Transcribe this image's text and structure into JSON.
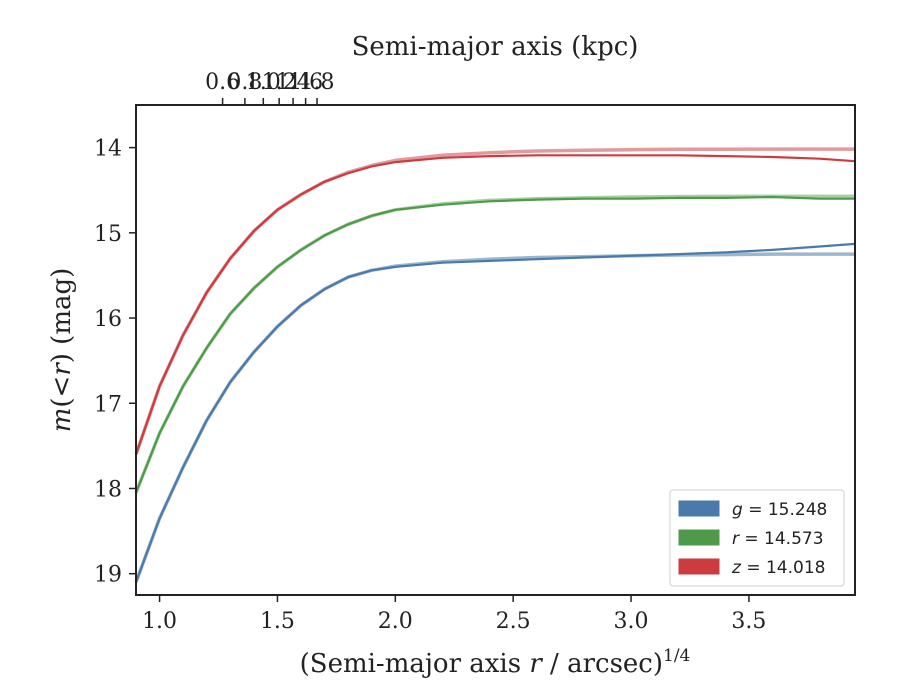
{
  "chart_data": {
    "type": "line",
    "x_label_main": "(Semi-major axis ",
    "x_label_var": "r",
    "x_label_rest": " / arcsec)",
    "x_label_sup": "1/4",
    "x2_label": "Semi-major axis (kpc)",
    "y_label_var": "m",
    "y_label_mid": "(<",
    "y_label_var2": "r",
    "y_label_rest": ") (mag)",
    "xlim": [
      0.9,
      3.95
    ],
    "ylim": [
      19.25,
      13.5
    ],
    "x_ticks": [
      "1.0",
      "1.5",
      "2.0",
      "2.5",
      "3.0",
      "3.5"
    ],
    "x_tick_values": [
      1.0,
      1.5,
      2.0,
      2.5,
      3.0,
      3.5
    ],
    "y_ticks": [
      "14",
      "15",
      "16",
      "17",
      "18",
      "19"
    ],
    "y_tick_values": [
      14,
      15,
      16,
      17,
      18,
      19
    ],
    "x2_ticks": [
      "0.6",
      "0.8",
      "1.0",
      "1.2",
      "1.4",
      "1.6",
      "1.8"
    ],
    "x2_tick_values": [
      0.6,
      0.8,
      1.0,
      1.2,
      1.4,
      1.6,
      1.8
    ],
    "x2_scale": "r^(1/4) = 1.44 * kpc^(1/4)",
    "grid": false,
    "legend_position": "lower-right",
    "series": [
      {
        "name": "g",
        "legend_value": "= 15.248",
        "color": "#4a7aaa",
        "model_color": "#9db6cf",
        "x": [
          0.9,
          1.0,
          1.1,
          1.2,
          1.3,
          1.4,
          1.5,
          1.6,
          1.7,
          1.8,
          1.9,
          2.0,
          2.2,
          2.4,
          2.6,
          2.8,
          3.0,
          3.2,
          3.4,
          3.6,
          3.8,
          3.95
        ],
        "y": [
          19.1,
          18.35,
          17.75,
          17.2,
          16.75,
          16.4,
          16.1,
          15.85,
          15.66,
          15.52,
          15.44,
          15.4,
          15.35,
          15.33,
          15.31,
          15.29,
          15.27,
          15.25,
          15.23,
          15.2,
          15.16,
          15.13
        ],
        "model_y": [
          19.1,
          18.35,
          17.75,
          17.2,
          16.75,
          16.4,
          16.1,
          15.85,
          15.66,
          15.52,
          15.44,
          15.39,
          15.34,
          15.31,
          15.29,
          15.28,
          15.27,
          15.26,
          15.255,
          15.25,
          15.25,
          15.25
        ]
      },
      {
        "name": "r",
        "legend_value": "= 14.573",
        "color": "#4f9a4a",
        "model_color": "#a6d0a0",
        "x": [
          0.9,
          1.0,
          1.1,
          1.2,
          1.3,
          1.4,
          1.5,
          1.6,
          1.7,
          1.8,
          1.9,
          2.0,
          2.2,
          2.4,
          2.6,
          2.8,
          3.0,
          3.2,
          3.4,
          3.6,
          3.8,
          3.95
        ],
        "y": [
          18.05,
          17.35,
          16.8,
          16.35,
          15.95,
          15.65,
          15.4,
          15.2,
          15.03,
          14.9,
          14.8,
          14.73,
          14.67,
          14.63,
          14.61,
          14.6,
          14.6,
          14.59,
          14.59,
          14.58,
          14.6,
          14.6
        ],
        "model_y": [
          18.05,
          17.35,
          16.8,
          16.35,
          15.95,
          15.65,
          15.4,
          15.2,
          15.03,
          14.9,
          14.8,
          14.73,
          14.66,
          14.62,
          14.6,
          14.59,
          14.58,
          14.575,
          14.573,
          14.573,
          14.573,
          14.573
        ]
      },
      {
        "name": "z",
        "legend_value": "= 14.018",
        "color": "#cc3b3f",
        "model_color": "#e39a9c",
        "x": [
          0.9,
          1.0,
          1.1,
          1.2,
          1.3,
          1.4,
          1.5,
          1.6,
          1.7,
          1.8,
          1.9,
          2.0,
          2.2,
          2.4,
          2.6,
          2.8,
          3.0,
          3.2,
          3.4,
          3.6,
          3.8,
          3.95
        ],
        "y": [
          17.6,
          16.8,
          16.2,
          15.7,
          15.3,
          14.98,
          14.73,
          14.55,
          14.4,
          14.3,
          14.22,
          14.17,
          14.12,
          14.1,
          14.09,
          14.09,
          14.09,
          14.09,
          14.1,
          14.11,
          14.13,
          14.16
        ],
        "model_y": [
          17.6,
          16.8,
          16.2,
          15.7,
          15.3,
          14.98,
          14.73,
          14.55,
          14.4,
          14.29,
          14.21,
          14.15,
          14.09,
          14.06,
          14.04,
          14.03,
          14.025,
          14.02,
          14.02,
          14.018,
          14.018,
          14.018
        ]
      }
    ]
  }
}
